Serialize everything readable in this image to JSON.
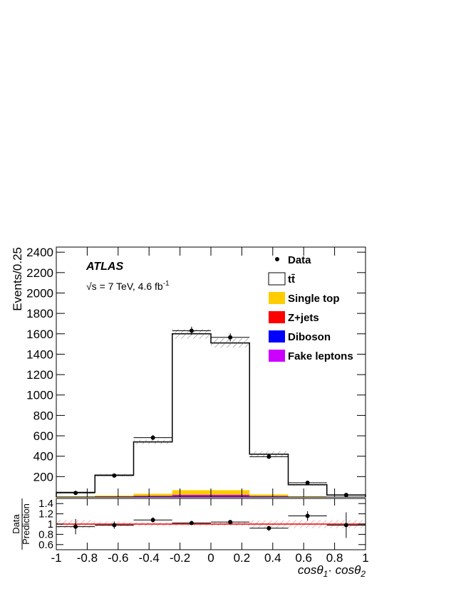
{
  "chart_data": [
    {
      "type": "histogram",
      "y_label": "Events/0.25",
      "annotations": {
        "experiment": "ATLAS",
        "energy": [
          "√s = 7 TeV, 4.6 fb",
          "-1"
        ]
      },
      "bins": [
        -1,
        -0.75,
        -0.5,
        -0.25,
        0,
        0.25,
        0.5,
        0.75,
        1
      ],
      "series": [
        {
          "name": "tt̄",
          "color": "#ffffff",
          "values": [
            38,
            200,
            507,
            1532,
            1442,
            394,
            112,
            18
          ]
        },
        {
          "name": "Single top",
          "color": "#ffcc00",
          "values": [
            3,
            8,
            20,
            45,
            45,
            15,
            4,
            1
          ]
        },
        {
          "name": "Z+jets",
          "color": "#ff0000",
          "values": [
            1,
            2,
            3,
            5,
            5,
            3,
            1,
            0
          ]
        },
        {
          "name": "Diboson",
          "color": "#0000ff",
          "values": [
            1,
            1,
            2,
            3,
            3,
            2,
            1,
            0
          ]
        },
        {
          "name": "Fake leptons",
          "color": "#cc00ff",
          "values": [
            2,
            4,
            8,
            15,
            15,
            6,
            2,
            1
          ]
        }
      ],
      "data": {
        "name": "Data",
        "values": [
          40,
          210,
          582,
          1630,
          1565,
          395,
          140,
          20
        ],
        "errors": [
          7,
          15,
          25,
          40,
          40,
          20,
          12,
          5
        ]
      },
      "uncertainty": [
        0.08,
        0.05,
        0.04,
        0.03,
        0.03,
        0.07,
        0.08,
        0.08
      ],
      "xlim": [
        -1,
        1
      ],
      "ylim": [
        0,
        2450
      ],
      "yticks": [
        200,
        400,
        600,
        800,
        1000,
        1200,
        1400,
        1600,
        1800,
        2000,
        2200,
        2400
      ]
    },
    {
      "type": "ratio",
      "y_label": [
        "Data",
        "Prediction"
      ],
      "x_label": [
        "cosθ",
        "1",
        "· cosθ",
        "2"
      ],
      "values": [
        0.95,
        0.98,
        1.08,
        1.02,
        1.04,
        0.92,
        1.16,
        0.98
      ],
      "errors": [
        0.15,
        0.07,
        0.05,
        0.03,
        0.03,
        0.05,
        0.09,
        0.25
      ],
      "reference": 1,
      "xlim": [
        -1,
        1
      ],
      "xticks": [
        -1,
        -0.8,
        -0.6,
        -0.4,
        -0.2,
        0,
        0.2,
        0.4,
        0.6,
        0.8,
        1
      ],
      "ylim": [
        0.5,
        1.5
      ],
      "yticks": [
        0.6,
        0.8,
        1,
        1.2,
        1.4
      ]
    }
  ]
}
